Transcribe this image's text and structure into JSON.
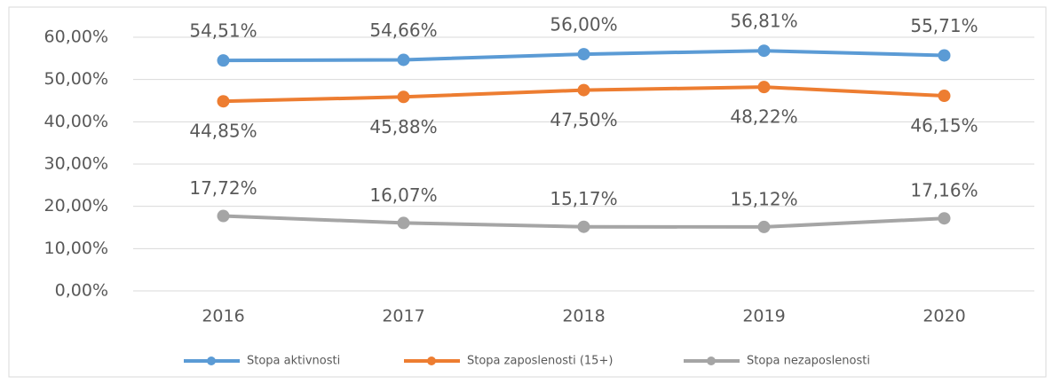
{
  "chart_data": {
    "type": "line",
    "categories": [
      "2016",
      "2017",
      "2018",
      "2019",
      "2020"
    ],
    "series": [
      {
        "name": "Stopa aktivnosti",
        "color": "#5b9bd5",
        "values": [
          54.51,
          54.66,
          56.0,
          56.81,
          55.71
        ],
        "value_labels": [
          "54,51%",
          "54,66%",
          "56,00%",
          "56,81%",
          "55,71%"
        ]
      },
      {
        "name": "Stopa zaposlenosti (15+)",
        "color": "#ed7d31",
        "values": [
          44.85,
          45.88,
          47.5,
          48.22,
          46.15
        ],
        "value_labels": [
          "44,85%",
          "45,88%",
          "47,50%",
          "48,22%",
          "46,15%"
        ]
      },
      {
        "name": "Stopa nezaposlenosti",
        "color": "#a5a5a5",
        "values": [
          17.72,
          16.07,
          15.17,
          15.12,
          17.16
        ],
        "value_labels": [
          "17,72%",
          "16,07%",
          "15,17%",
          "15,12%",
          "17,16%"
        ]
      }
    ],
    "ylim": [
      0,
      60
    ],
    "yticks": [
      {
        "value": 0,
        "label": "0,00%"
      },
      {
        "value": 10,
        "label": "10,00%"
      },
      {
        "value": 20,
        "label": "20,00%"
      },
      {
        "value": 30,
        "label": "30,00%"
      },
      {
        "value": 40,
        "label": "40,00%"
      },
      {
        "value": 50,
        "label": "50,00%"
      },
      {
        "value": 60,
        "label": "60,00%"
      }
    ],
    "grid": true,
    "legend": "bottom"
  }
}
